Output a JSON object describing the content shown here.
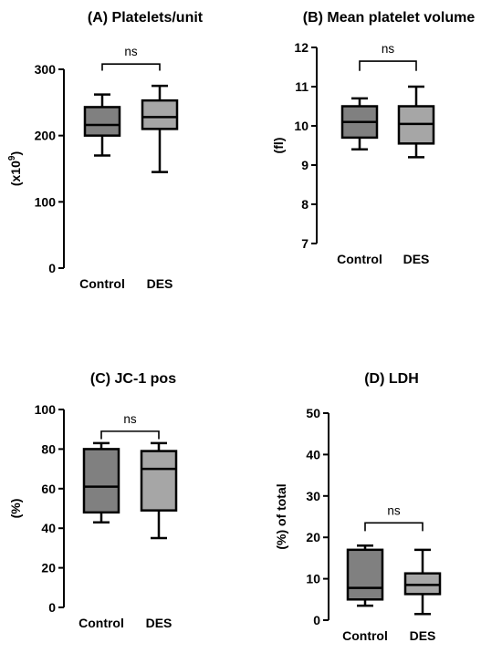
{
  "chart_data": [
    {
      "type": "box",
      "title": "(A) Platelets/unit",
      "ylabel": "(x10",
      "ylabel_sup": "9",
      "ylabel_suffix": ")",
      "ylim": [
        0,
        300
      ],
      "yticks": [
        0,
        100,
        200,
        300
      ],
      "categories": [
        "Control",
        "DES"
      ],
      "series": [
        {
          "category": "Control",
          "min": 170,
          "q1": 200,
          "median": 216,
          "q3": 243,
          "max": 262,
          "color": "#808080"
        },
        {
          "category": "DES",
          "min": 145,
          "q1": 210,
          "median": 228,
          "q3": 253,
          "max": 275,
          "color": "#a6a6a6"
        }
      ],
      "comparison": {
        "from": "Control",
        "to": "DES",
        "label": "ns",
        "y": 308,
        "tick_drop": 10
      }
    },
    {
      "type": "box",
      "title": "(B) Mean platelet volume",
      "ylabel": "(fl)",
      "ylim": [
        7,
        12
      ],
      "yticks": [
        7,
        8,
        9,
        10,
        11,
        12
      ],
      "categories": [
        "Control",
        "DES"
      ],
      "series": [
        {
          "category": "Control",
          "min": 9.4,
          "q1": 9.7,
          "median": 10.1,
          "q3": 10.5,
          "max": 10.7,
          "color": "#808080"
        },
        {
          "category": "DES",
          "min": 9.2,
          "q1": 9.55,
          "median": 10.05,
          "q3": 10.5,
          "max": 11.0,
          "color": "#a6a6a6"
        }
      ],
      "comparison": {
        "from": "Control",
        "to": "DES",
        "label": "ns",
        "y": 11.65,
        "tick_drop": 0.25
      }
    },
    {
      "type": "box",
      "title": "(C) JC-1 pos",
      "ylabel": "(%)",
      "ylim": [
        0,
        100
      ],
      "yticks": [
        0,
        20,
        40,
        60,
        80,
        100
      ],
      "categories": [
        "Control",
        "DES"
      ],
      "series": [
        {
          "category": "Control",
          "min": 43,
          "q1": 48,
          "median": 61,
          "q3": 80,
          "max": 83,
          "color": "#808080"
        },
        {
          "category": "DES",
          "min": 35,
          "q1": 49,
          "median": 70,
          "q3": 79,
          "max": 83,
          "color": "#a6a6a6"
        }
      ],
      "comparison": {
        "from": "Control",
        "to": "DES",
        "label": "ns",
        "y": 89,
        "tick_drop": 4
      }
    },
    {
      "type": "box",
      "title": "(D) LDH",
      "ylabel": "(%) of total",
      "ylim": [
        0,
        50
      ],
      "yticks": [
        0,
        10,
        20,
        30,
        40,
        50
      ],
      "categories": [
        "Control",
        "DES"
      ],
      "series": [
        {
          "category": "Control",
          "min": 3.5,
          "q1": 5,
          "median": 7.8,
          "q3": 17,
          "max": 18,
          "color": "#808080"
        },
        {
          "category": "DES",
          "min": 1.5,
          "q1": 6.3,
          "median": 8.5,
          "q3": 11.3,
          "max": 17,
          "color": "#a6a6a6"
        }
      ],
      "comparison": {
        "from": "Control",
        "to": "DES",
        "label": "ns",
        "y": 23.5,
        "tick_drop": 2
      }
    }
  ]
}
